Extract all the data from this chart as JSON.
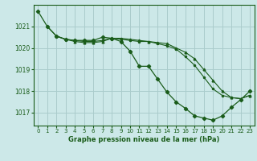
{
  "bg_color": "#cce8e8",
  "grid_color": "#aacccc",
  "line_color": "#1a5c1a",
  "title": "Graphe pression niveau de la mer (hPa)",
  "xlim": [
    -0.5,
    23.5
  ],
  "ylim": [
    1016.4,
    1022.0
  ],
  "yticks": [
    1017,
    1018,
    1019,
    1020,
    1021
  ],
  "xticks": [
    0,
    1,
    2,
    3,
    4,
    5,
    6,
    7,
    8,
    9,
    10,
    11,
    12,
    13,
    14,
    15,
    16,
    17,
    18,
    19,
    20,
    21,
    22,
    23
  ],
  "s1_x": [
    0,
    1,
    2,
    3,
    4,
    5,
    6,
    7,
    8,
    9,
    10,
    11,
    12,
    13,
    14,
    15,
    16,
    17,
    18,
    19,
    20,
    21,
    22,
    23
  ],
  "s1_y": [
    1021.7,
    1021.0,
    1020.55,
    1020.4,
    1020.35,
    1020.35,
    1020.35,
    1020.5,
    1020.45,
    1020.3,
    1019.85,
    1019.15,
    1019.15,
    1018.55,
    1017.95,
    1017.5,
    1017.2,
    1016.85,
    1016.75,
    1016.65,
    1016.85,
    1017.25,
    1017.6,
    1018.0
  ],
  "s2_x": [
    1,
    2,
    3,
    4,
    5,
    6,
    7,
    8,
    9,
    10,
    11,
    12,
    13,
    14,
    15,
    16,
    17,
    18,
    19,
    20,
    21,
    22,
    23
  ],
  "s2_y": [
    1021.0,
    1020.55,
    1020.4,
    1020.35,
    1020.3,
    1020.3,
    1020.35,
    1020.45,
    1020.4,
    1020.35,
    1020.3,
    1020.3,
    1020.2,
    1020.1,
    1019.95,
    1019.6,
    1019.2,
    1018.65,
    1018.1,
    1017.8,
    1017.7,
    1017.65,
    1017.8
  ],
  "s3_x": [
    2,
    3,
    4,
    5,
    6,
    7,
    8,
    9,
    10,
    11,
    12,
    13,
    14,
    15,
    16,
    17,
    18,
    19,
    20,
    21,
    22,
    23
  ],
  "s3_y": [
    1020.55,
    1020.4,
    1020.3,
    1020.25,
    1020.25,
    1020.3,
    1020.45,
    1020.45,
    1020.4,
    1020.35,
    1020.3,
    1020.25,
    1020.2,
    1020.0,
    1019.8,
    1019.5,
    1019.0,
    1018.5,
    1018.0,
    1017.7,
    1017.65,
    1017.8
  ]
}
